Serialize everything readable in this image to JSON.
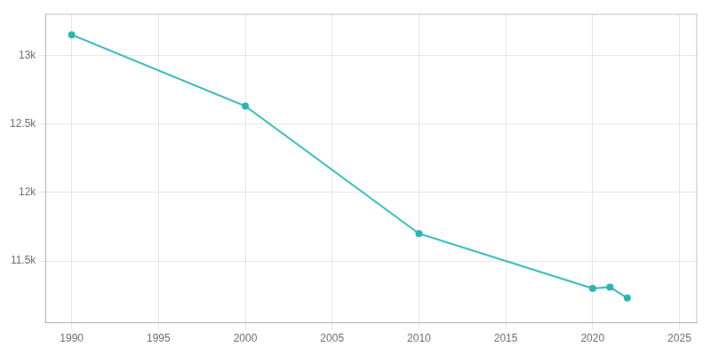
{
  "chart_data": {
    "type": "line",
    "x": [
      1990,
      2000,
      2010,
      2020,
      2021,
      2022
    ],
    "values": [
      13150,
      12630,
      11700,
      11300,
      11310,
      11230
    ],
    "color": "#2ab5b5",
    "marker": "circle",
    "xlim": [
      1988.5,
      2026
    ],
    "ylim": [
      11050,
      13300
    ],
    "xticks": [
      1990,
      1995,
      2000,
      2005,
      2010,
      2015,
      2020,
      2025
    ],
    "yticks": [
      {
        "value": 11500,
        "label": "11.5k"
      },
      {
        "value": 12000,
        "label": "12k"
      },
      {
        "value": 12500,
        "label": "12.5k"
      },
      {
        "value": 13000,
        "label": "13k"
      }
    ],
    "grid": true
  }
}
